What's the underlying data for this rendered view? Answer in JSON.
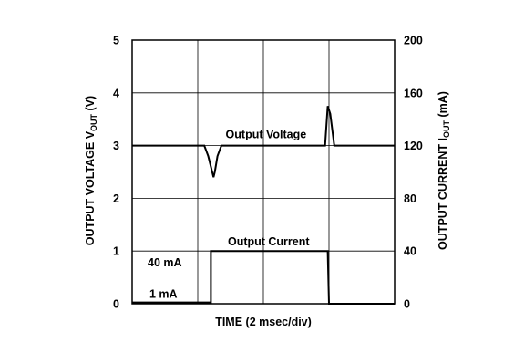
{
  "chart_data": {
    "type": "line",
    "xlabel": "TIME (2 msec/div)",
    "xlim": [
      0,
      10
    ],
    "left_axis": {
      "label_main": "OUTPUT VOLTAGE  V",
      "label_sub": "OUT",
      "label_unit": " (V)",
      "ylim": [
        0,
        5
      ],
      "ticks": [
        "0",
        "1",
        "2",
        "3",
        "4",
        "5"
      ]
    },
    "right_axis": {
      "label_main": "OUTPUT CURRENT  I",
      "label_sub": "OUT",
      "label_unit": " (mA)",
      "ylim": [
        0,
        200
      ],
      "ticks": [
        "0",
        "40",
        "80",
        "120",
        "160",
        "200"
      ]
    },
    "grid": true,
    "series": [
      {
        "name": "Output Voltage",
        "axis": "left",
        "x": [
          0,
          2.75,
          2.9,
          3.1,
          3.15,
          3.25,
          3.4,
          7.35,
          7.45,
          7.55,
          7.7,
          10
        ],
        "y": [
          3.0,
          3.0,
          2.8,
          2.4,
          2.5,
          2.8,
          3.0,
          3.0,
          3.75,
          3.6,
          3.0,
          3.0
        ]
      },
      {
        "name": "Output Current",
        "axis": "right",
        "x": [
          0,
          3.0,
          3.0,
          7.45,
          7.5,
          10
        ],
        "y": [
          1,
          1,
          40,
          40,
          0,
          0
        ]
      }
    ],
    "annotations": [
      "40 mA",
      "1 mA"
    ]
  }
}
